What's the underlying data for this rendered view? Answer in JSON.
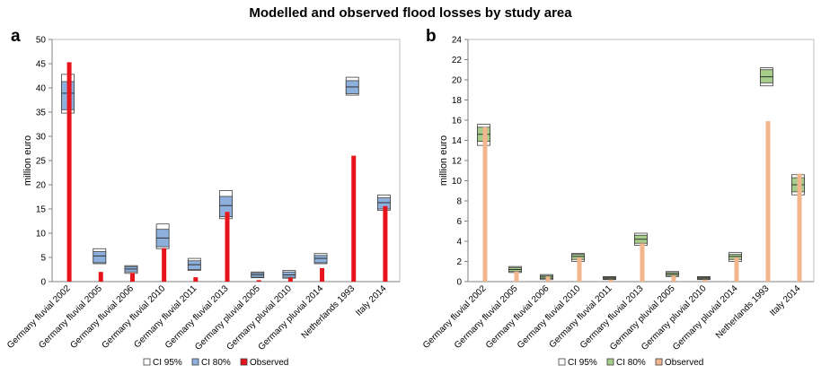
{
  "title": "Modelled and observed flood losses by study area",
  "chart_data": [
    {
      "type": "bar",
      "panel": "a",
      "ylabel": "million euro",
      "ylim": [
        0,
        50
      ],
      "ytick_step": 5,
      "colors": {
        "ci95": "#ffffff",
        "ci80": "#8eb0dc",
        "observed": "#e8141b"
      },
      "legend": {
        "placement": "bottom",
        "ci95": "CI 95%",
        "ci80": "CI 80%",
        "observed": "Observed"
      },
      "categories": [
        "Germany fluvial 2002",
        "Germany fluvial 2005",
        "Germany fluvial 2006",
        "Germany fluvial 2010",
        "Germany fluvial 2011",
        "Germany fluvial 2013",
        "Germany pluvial 2005",
        "Germany pluvial 2010",
        "Germany pluvial 2014",
        "Netherlands 1993",
        "Italy 2014"
      ],
      "ci95": [
        [
          34.8,
          42.8
        ],
        [
          3.7,
          6.8
        ],
        [
          1.7,
          3.3
        ],
        [
          6.8,
          11.9
        ],
        [
          2.3,
          4.8
        ],
        [
          13.0,
          18.8
        ],
        [
          0.8,
          2.0
        ],
        [
          0.7,
          2.3
        ],
        [
          3.7,
          5.8
        ],
        [
          38.5,
          42.2
        ],
        [
          14.7,
          17.9
        ]
      ],
      "ci80": [
        [
          35.5,
          41.3
        ],
        [
          3.9,
          6.2
        ],
        [
          2.0,
          3.1
        ],
        [
          7.2,
          10.8
        ],
        [
          2.5,
          4.3
        ],
        [
          13.4,
          17.6
        ],
        [
          0.9,
          1.8
        ],
        [
          0.9,
          2.0
        ],
        [
          3.9,
          5.4
        ],
        [
          38.8,
          41.5
        ],
        [
          15.0,
          17.3
        ]
      ],
      "median": [
        38.9,
        5.3,
        2.6,
        9.0,
        3.5,
        15.7,
        1.4,
        1.4,
        4.8,
        40.2,
        16.3
      ],
      "observed": [
        45.3,
        2.0,
        1.8,
        6.9,
        0.9,
        14.4,
        0.3,
        0.8,
        2.8,
        26.0,
        15.6
      ]
    },
    {
      "type": "bar",
      "panel": "b",
      "ylabel": "million euro",
      "ylim": [
        0,
        24
      ],
      "ytick_step": 2,
      "colors": {
        "ci95": "#ffffff",
        "ci80": "#a6cd8a",
        "observed": "#f2b58c"
      },
      "legend": {
        "placement": "bottom",
        "ci95": "CI 95%",
        "ci80": "CI 80%",
        "observed": "Observed"
      },
      "categories": [
        "Germany fluvial 2002",
        "Germany fluvial 2005",
        "Germany fluvial 2006",
        "Germany fluvial 2010",
        "Germany fluvial 2011",
        "Germany fluvial 2013",
        "Germany pluvial 2005",
        "Germany pluvial 2010",
        "Germany pluvial 2014",
        "Netherlands 1993",
        "Italy 2014"
      ],
      "ci95": [
        [
          13.5,
          15.6
        ],
        [
          0.9,
          1.5
        ],
        [
          0.2,
          0.7
        ],
        [
          2.0,
          2.8
        ],
        [
          0.2,
          0.5
        ],
        [
          3.6,
          4.8
        ],
        [
          0.5,
          1.0
        ],
        [
          0.2,
          0.5
        ],
        [
          2.0,
          2.9
        ],
        [
          19.4,
          21.2
        ],
        [
          8.6,
          10.6
        ]
      ],
      "ci80": [
        [
          13.9,
          15.3
        ],
        [
          1.0,
          1.4
        ],
        [
          0.3,
          0.6
        ],
        [
          2.2,
          2.7
        ],
        [
          0.25,
          0.45
        ],
        [
          3.8,
          4.6
        ],
        [
          0.6,
          0.9
        ],
        [
          0.25,
          0.45
        ],
        [
          2.2,
          2.7
        ],
        [
          19.7,
          21.0
        ],
        [
          8.9,
          10.3
        ]
      ],
      "median": [
        14.6,
        1.2,
        0.45,
        2.5,
        0.35,
        4.2,
        0.75,
        0.35,
        2.5,
        20.3,
        9.6
      ],
      "observed": [
        15.3,
        1.0,
        0.5,
        2.4,
        0.2,
        3.8,
        0.6,
        0.2,
        2.4,
        15.9,
        10.7
      ]
    }
  ]
}
